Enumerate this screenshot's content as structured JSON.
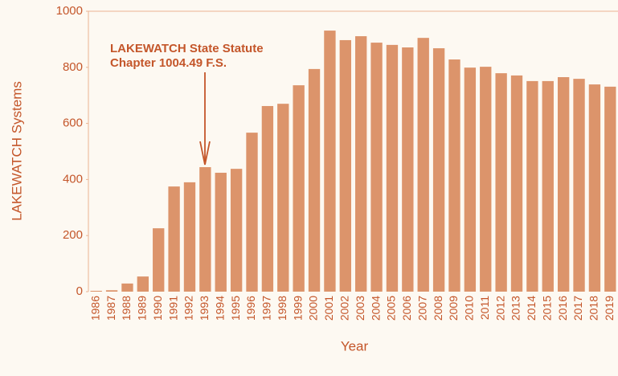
{
  "chart_data": {
    "type": "bar",
    "y_label": "LAKEWATCH Systems",
    "x_label": "Year",
    "annotation": [
      "LAKEWATCH State Statute",
      "Chapter 1004.49 F.S."
    ],
    "categories": [
      "1986",
      "1987",
      "1988",
      "1989",
      "1990",
      "1991",
      "1992",
      "1993",
      "1994",
      "1995",
      "1996",
      "1997",
      "1998",
      "1999",
      "2000",
      "2001",
      "2002",
      "2003",
      "2004",
      "2005",
      "2006",
      "2007",
      "2008",
      "2009",
      "2010",
      "2011",
      "2012",
      "2013",
      "2014",
      "2015",
      "2016",
      "2017",
      "2018",
      "2019"
    ],
    "values": [
      3,
      5,
      29,
      54,
      226,
      375,
      390,
      444,
      424,
      438,
      567,
      662,
      670,
      736,
      794,
      931,
      897,
      911,
      888,
      880,
      871,
      905,
      868,
      828,
      799,
      802,
      779,
      771,
      751,
      751,
      765,
      759,
      739,
      731
    ],
    "color": "#dc946b",
    "ylim": [
      0,
      1000
    ],
    "yticks": [
      0,
      200,
      400,
      600,
      800,
      1000
    ]
  }
}
